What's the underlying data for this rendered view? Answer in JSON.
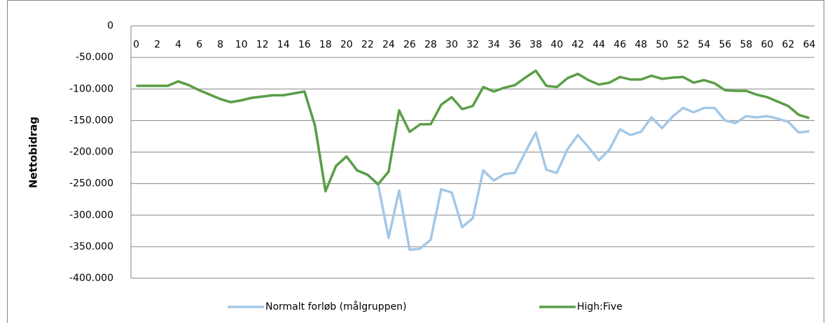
{
  "chart_data": {
    "type": "line",
    "y_label": "Nettobidrag",
    "categories": [
      0,
      null,
      2,
      null,
      4,
      null,
      6,
      null,
      8,
      null,
      10,
      null,
      12,
      null,
      14,
      null,
      16,
      null,
      18,
      null,
      20,
      null,
      22,
      null,
      24,
      null,
      26,
      null,
      28,
      null,
      30,
      null,
      32,
      null,
      34,
      null,
      36,
      null,
      38,
      null,
      40,
      null,
      42,
      null,
      44,
      null,
      46,
      null,
      48,
      null,
      50,
      null,
      52,
      null,
      54,
      null,
      56,
      null,
      58,
      null,
      60,
      null,
      62,
      null,
      64
    ],
    "series": [
      {
        "name": "Normalt forløb (målgruppen)",
        "color": "#a3c8e8",
        "values": [
          -95000,
          -95000,
          -95000,
          -95000,
          -88000,
          -94000,
          -102000,
          -109000,
          -116000,
          -121000,
          -118000,
          -114000,
          -112000,
          -110000,
          -110000,
          -107000,
          -104000,
          -158000,
          -262000,
          -222000,
          -207000,
          -229000,
          -236000,
          -251000,
          -336000,
          -261000,
          -355000,
          -353000,
          -339000,
          -259000,
          -264000,
          -319000,
          -305000,
          -229000,
          -245000,
          -235000,
          -233000,
          -200000,
          -169000,
          -228000,
          -233000,
          -196000,
          -173000,
          -192000,
          -213000,
          -196000,
          -164000,
          -173000,
          -168000,
          -145000,
          -162000,
          -144000,
          -130000,
          -137000,
          -130000,
          -130000,
          -150000,
          -154000,
          -143000,
          -145000,
          -143000,
          -147000,
          -152000,
          -169000,
          -167000
        ]
      },
      {
        "name": "High:Five",
        "color": "#5a9e46",
        "values": [
          -95000,
          -95000,
          -95000,
          -95000,
          -88000,
          -94000,
          -102000,
          -109000,
          -116000,
          -121000,
          -118000,
          -114000,
          -112000,
          -110000,
          -110000,
          -107000,
          -104000,
          -158000,
          -262000,
          -222000,
          -207000,
          -229000,
          -236000,
          -251000,
          -231000,
          -134000,
          -168000,
          -156000,
          -156000,
          -125000,
          -113000,
          -132000,
          -127000,
          -97000,
          -104000,
          -98000,
          -94000,
          -82000,
          -71000,
          -95000,
          -97000,
          -83000,
          -76000,
          -86000,
          -93000,
          -90000,
          -81000,
          -85000,
          -85000,
          -79000,
          -84000,
          -82000,
          -81000,
          -90000,
          -86000,
          -91000,
          -102000,
          -103000,
          -103000,
          -109000,
          -113000,
          -120000,
          -127000,
          -141000,
          -146000
        ]
      }
    ],
    "ylim": [
      -400000,
      0
    ],
    "yticks": [
      0,
      {
        "value": -50000,
        "label": "-50.000"
      },
      {
        "value": -100000,
        "label": "-100.000"
      },
      {
        "value": -150000,
        "label": "-150.000"
      },
      {
        "value": -200000,
        "label": "-200.000"
      },
      {
        "value": -250000,
        "label": "-250.000"
      },
      {
        "value": -300000,
        "label": "-300.000"
      },
      {
        "value": -350000,
        "label": "-350.000"
      },
      {
        "value": -400000,
        "label": "-400.000"
      }
    ],
    "grid": true,
    "legend": "bottom"
  }
}
